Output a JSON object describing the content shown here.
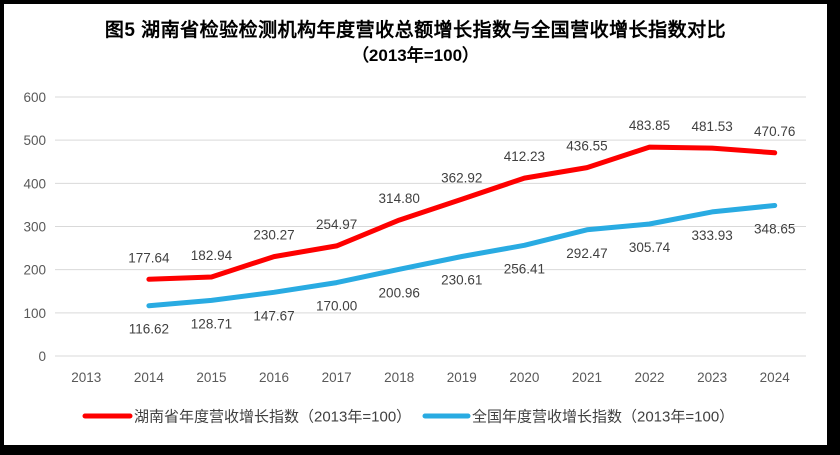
{
  "title": {
    "line1": "图5 湖南省检验检测机构年度营收总额增长指数与全国营收增长指数对比",
    "line2": "（2013年=100）"
  },
  "chart_data": {
    "type": "line",
    "title": "图5 湖南省检验检测机构年度营收总额增长指数与全国营收增长指数对比（2013年=100）",
    "categories": [
      "2013",
      "2014",
      "2015",
      "2016",
      "2017",
      "2018",
      "2019",
      "2020",
      "2021",
      "2022",
      "2023",
      "2024"
    ],
    "series": [
      {
        "name": "湖南省年度营收增长指数（2013年=100）",
        "color": "#FE0000",
        "label_position": "above",
        "values": [
          null,
          177.64,
          182.94,
          230.27,
          254.97,
          314.8,
          362.92,
          412.23,
          436.55,
          483.85,
          481.53,
          470.76
        ]
      },
      {
        "name": "全国年度营收增长指数（2013年=100）",
        "color": "#29ABE2",
        "label_position": "below",
        "values": [
          null,
          116.62,
          128.71,
          147.67,
          170.0,
          200.96,
          230.61,
          256.41,
          292.47,
          305.74,
          333.93,
          348.65
        ]
      }
    ],
    "xlabel": "",
    "ylabel": "",
    "ylim": [
      0,
      600
    ],
    "y_ticks": [
      0,
      100,
      200,
      300,
      400,
      500,
      600
    ],
    "grid": true,
    "gridlines": "horizontal-only",
    "legend_position": "bottom",
    "data_labels_decimals": 2,
    "colors": {
      "gridline": "#D9D9D9",
      "axis_text": "#595959",
      "data_label_text": "#404040",
      "legend_text": "#404040",
      "title_text": "#000000",
      "plot_background": "#FFFFFF",
      "frame": "#000000"
    }
  }
}
